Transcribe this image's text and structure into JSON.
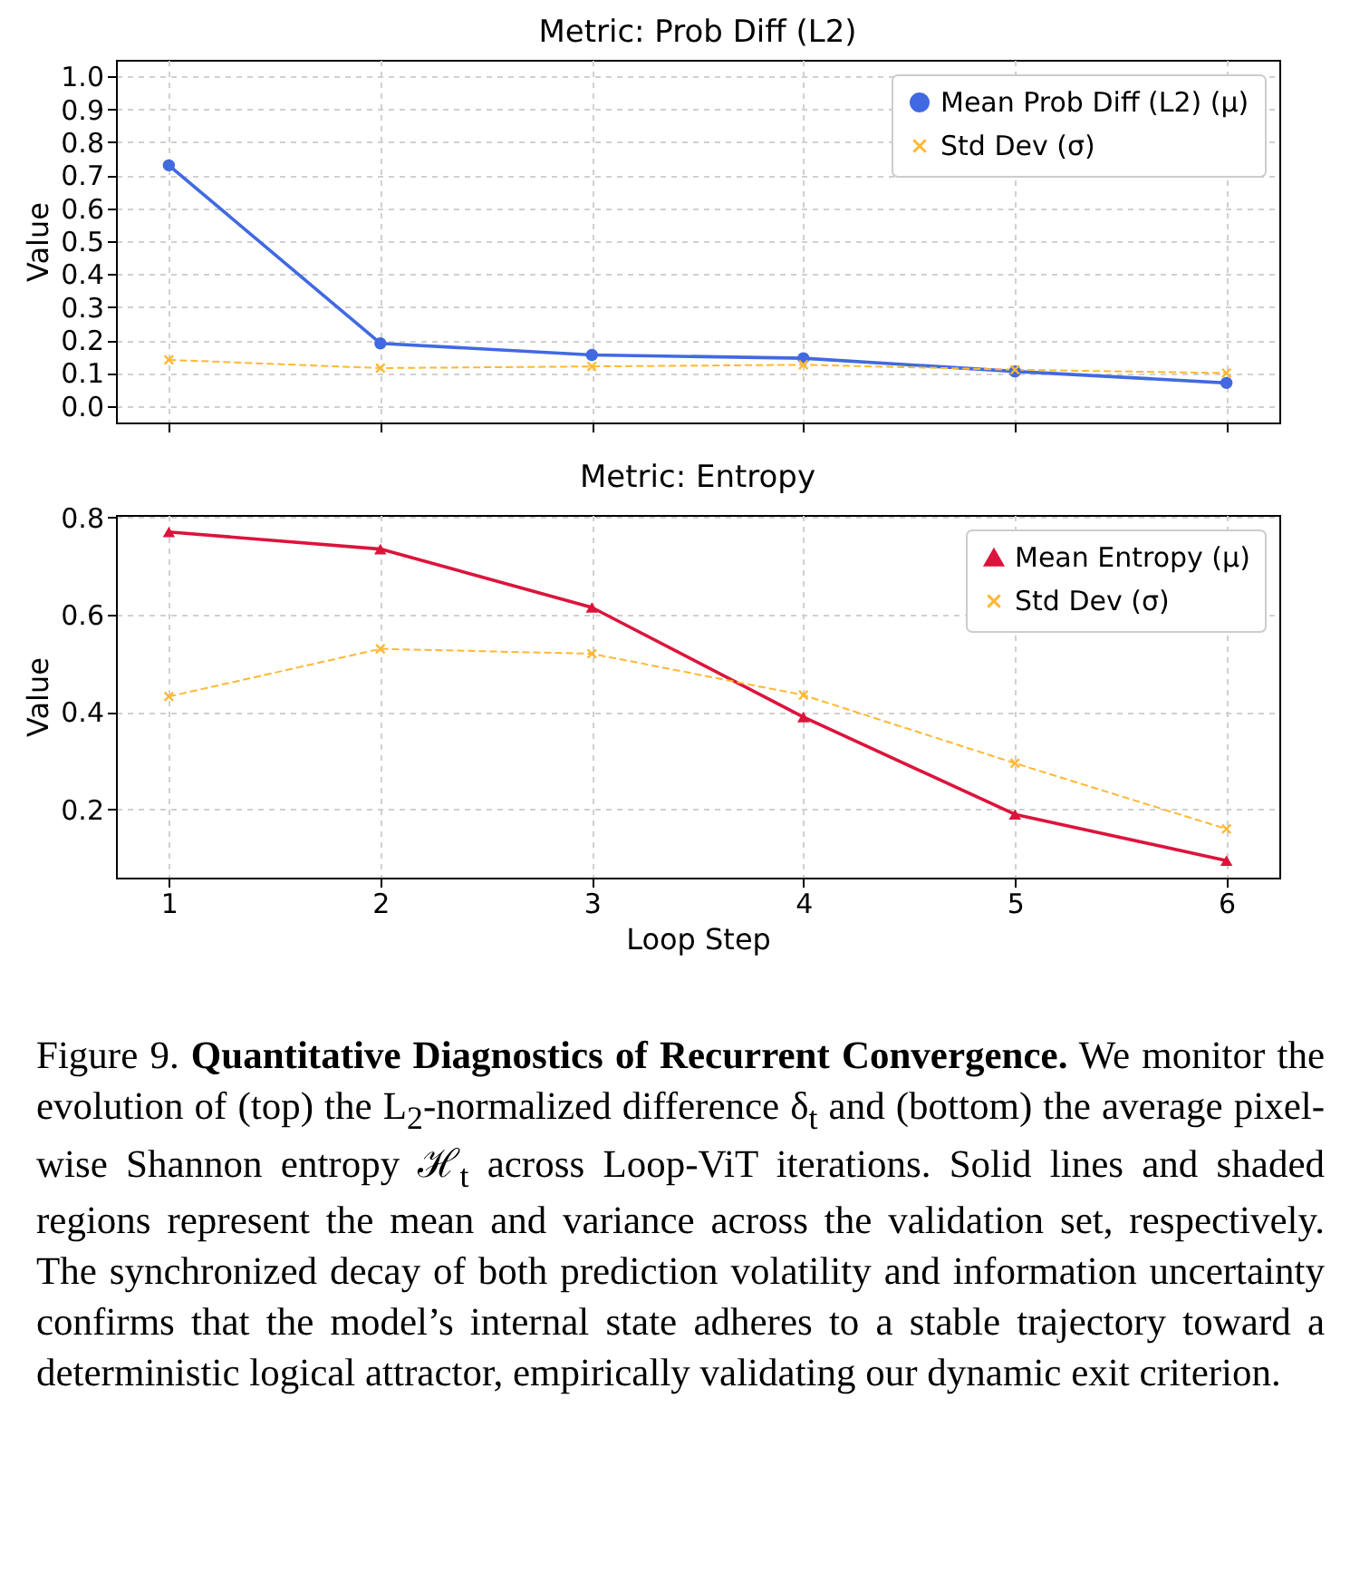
{
  "chart_data": [
    {
      "type": "line",
      "title": "Metric: Prob Diff (L2)",
      "ylabel": "Value",
      "x": [
        1,
        2,
        3,
        4,
        5,
        6
      ],
      "xlim": [
        0.75,
        6.25
      ],
      "xticks": [
        1,
        2,
        3,
        4,
        5,
        6
      ],
      "ylim": [
        -0.05,
        1.05
      ],
      "yticks": [
        {
          "value": 0,
          "label": "0.0"
        },
        0.1,
        0.2,
        0.3,
        0.4,
        0.5,
        0.6,
        0.7,
        0.8,
        0.9,
        {
          "value": 1,
          "label": "1.0"
        }
      ],
      "grid": true,
      "legend": "top right",
      "tick_labels": "y",
      "series": [
        {
          "name": "Mean Prob Diff (L2) (μ)",
          "color": "#4169e1",
          "marker": "circle",
          "line_style": "solid",
          "values": [
            0.73,
            0.19,
            0.155,
            0.145,
            0.105,
            0.07
          ]
        },
        {
          "name": "Std Dev (σ)",
          "color": "#ffb833",
          "marker": "cross",
          "line_style": "dashed",
          "values": [
            0.14,
            0.115,
            0.12,
            0.125,
            0.11,
            0.1
          ]
        }
      ]
    },
    {
      "type": "line",
      "title": "Metric: Entropy",
      "xlabel": "Loop Step",
      "ylabel": "Value",
      "x": [
        1,
        2,
        3,
        4,
        5,
        6
      ],
      "xlim": [
        0.75,
        6.25
      ],
      "xticks": [
        1,
        2,
        3,
        4,
        5,
        6
      ],
      "ylim": [
        0.06,
        0.805
      ],
      "yticks": [
        0.2,
        0.4,
        0.6,
        0.8
      ],
      "grid": true,
      "legend": "top right",
      "series": [
        {
          "name": "Mean Entropy (μ)",
          "color": "#dc143c",
          "marker": "triangle",
          "line_style": "solid",
          "values": [
            0.77,
            0.735,
            0.615,
            0.39,
            0.19,
            0.095
          ]
        },
        {
          "name": "Std Dev (σ)",
          "color": "#ffb833",
          "marker": "cross",
          "line_style": "dashed",
          "values": [
            0.432,
            0.53,
            0.52,
            0.435,
            0.295,
            0.16
          ]
        }
      ],
      "annotations": [
        "Figure 9.",
        "Quantitative Diagnostics of Recurrent Convergence.",
        "We monitor the evolution of (top) the L$_{2}$-normalized difference δ$_{t}$ and (bottom) the average pixel-wise Shannon entropy ℋ$_{t}$ across Loop-ViT iterations. Solid lines and shaded regions represent the mean and variance across the validation set, respectively. The synchronized decay of both prediction volatility and information uncertainty confirms that the model’s internal state adheres to a stable trajectory toward a deterministic logical attractor, empirically validating our dynamic exit criterion."
      ]
    }
  ]
}
